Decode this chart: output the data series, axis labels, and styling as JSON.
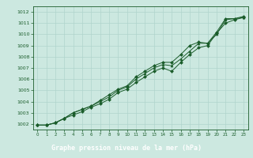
{
  "title": "Graphe pression niveau de la mer (hPa)",
  "bg_color": "#cce8e0",
  "grid_color": "#b0d4cc",
  "line_color": "#1a5c2a",
  "marker_color": "#1a5c2a",
  "text_color": "#1a5c2a",
  "footer_bg": "#2a7a40",
  "footer_text": "#ffffff",
  "xlim": [
    -0.5,
    23.5
  ],
  "ylim": [
    1001.5,
    1012.5
  ],
  "xticks": [
    0,
    1,
    2,
    3,
    4,
    5,
    6,
    7,
    8,
    9,
    10,
    11,
    12,
    13,
    14,
    15,
    16,
    17,
    18,
    19,
    20,
    21,
    22,
    23
  ],
  "yticks": [
    1002,
    1003,
    1004,
    1005,
    1006,
    1007,
    1008,
    1009,
    1010,
    1011,
    1012
  ],
  "series": [
    [
      1001.9,
      1001.9,
      1002.1,
      1002.5,
      1002.8,
      1003.1,
      1003.5,
      1003.8,
      1004.2,
      1004.8,
      1005.1,
      1005.7,
      1006.2,
      1006.7,
      1007.0,
      1006.7,
      1007.5,
      1008.2,
      1008.8,
      1009.0,
      1010.1,
      1011.0,
      1011.3,
      1011.5
    ],
    [
      1001.9,
      1001.9,
      1002.1,
      1002.5,
      1003.0,
      1003.3,
      1003.6,
      1004.0,
      1004.4,
      1005.0,
      1005.3,
      1006.0,
      1006.5,
      1007.0,
      1007.3,
      1007.2,
      1007.8,
      1008.5,
      1009.2,
      1009.2,
      1010.0,
      1011.3,
      1011.4,
      1011.5
    ],
    [
      1001.9,
      1001.9,
      1002.1,
      1002.5,
      1003.0,
      1003.3,
      1003.6,
      1004.1,
      1004.6,
      1005.1,
      1005.4,
      1006.2,
      1006.7,
      1007.2,
      1007.5,
      1007.5,
      1008.2,
      1009.0,
      1009.3,
      1009.2,
      1010.2,
      1011.4,
      1011.4,
      1011.6
    ]
  ]
}
